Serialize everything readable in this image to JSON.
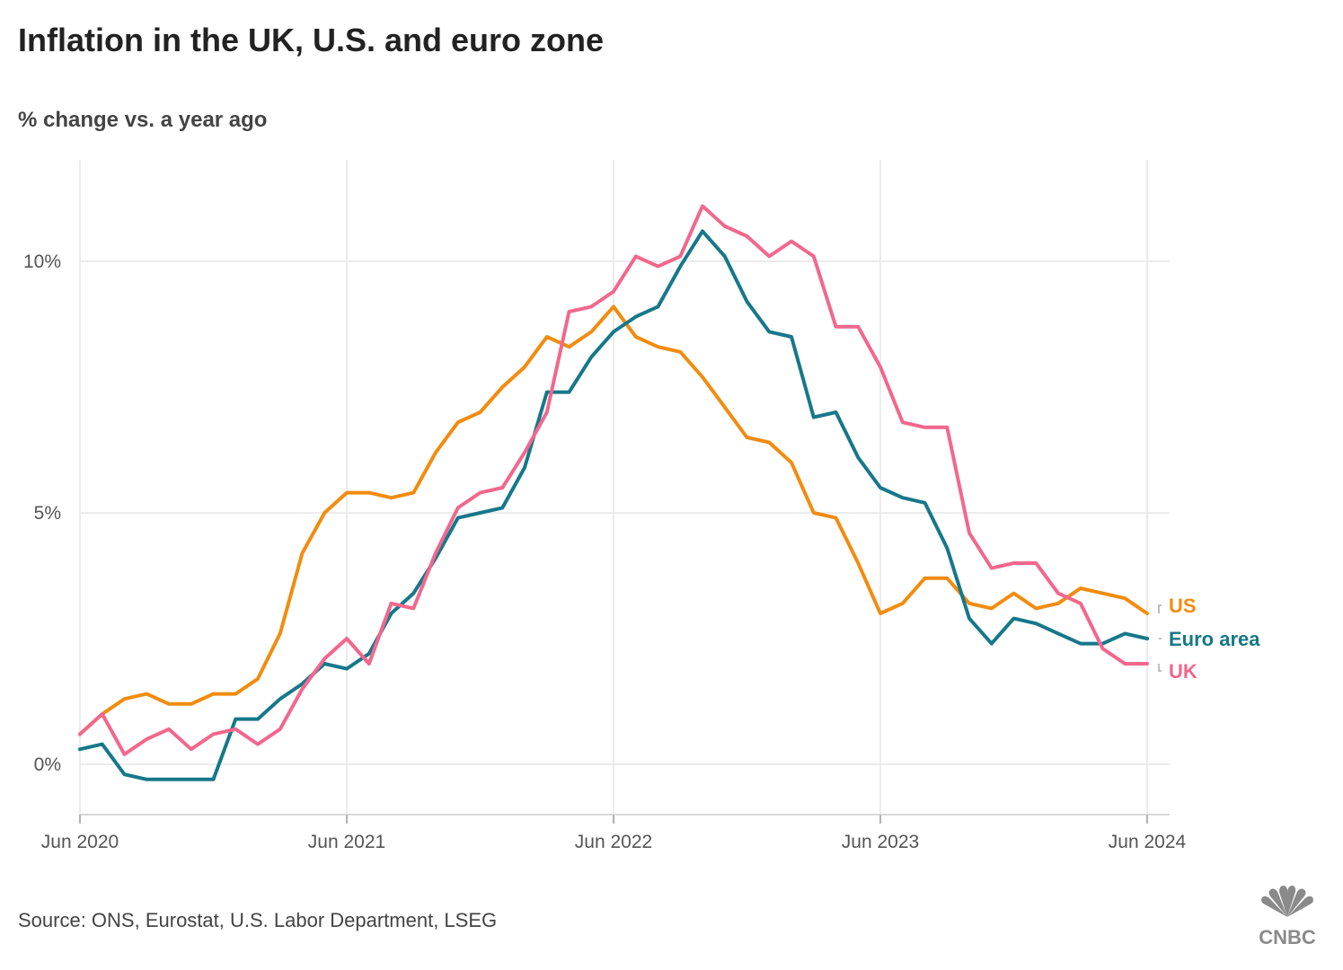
{
  "title": "Inflation in the UK, U.S. and euro zone",
  "subtitle": "% change vs. a year ago",
  "source": "Source: ONS, Eurostat, U.S. Labor Department, LSEG",
  "logo_text": "CNBC",
  "colors": {
    "US": "#f28c0f",
    "Euro area": "#16788a",
    "UK": "#f2678d",
    "grid": "#e6e6e6",
    "axis": "#cccccc"
  },
  "chart_data": {
    "type": "line",
    "title": "Inflation in the UK, U.S. and euro zone",
    "ylabel": "% change vs. a year ago",
    "x_start": "Jun 2020",
    "x_end": "Jun 2024",
    "x_tick_labels": [
      "Jun 2020",
      "Jun 2021",
      "Jun 2022",
      "Jun 2023",
      "Jun 2024"
    ],
    "x_tick_index": [
      0,
      12,
      24,
      36,
      48
    ],
    "y_ticks": [
      0,
      5,
      10
    ],
    "y_tick_labels": [
      "0%",
      "5%",
      "10%"
    ],
    "ylim": [
      -1,
      12
    ],
    "series": [
      {
        "name": "US",
        "label": "US",
        "values": [
          0.6,
          1.0,
          1.3,
          1.4,
          1.2,
          1.2,
          1.4,
          1.4,
          1.7,
          2.6,
          4.2,
          5.0,
          5.4,
          5.4,
          5.3,
          5.4,
          6.2,
          6.8,
          7.0,
          7.5,
          7.9,
          8.5,
          8.3,
          8.6,
          9.1,
          8.5,
          8.3,
          8.2,
          7.7,
          7.1,
          6.5,
          6.4,
          6.0,
          5.0,
          4.9,
          4.0,
          3.0,
          3.2,
          3.7,
          3.7,
          3.2,
          3.1,
          3.4,
          3.1,
          3.2,
          3.5,
          3.4,
          3.3,
          3.0
        ]
      },
      {
        "name": "Euro area",
        "label": "Euro area",
        "values": [
          0.3,
          0.4,
          -0.2,
          -0.3,
          -0.3,
          -0.3,
          -0.3,
          0.9,
          0.9,
          1.3,
          1.6,
          2.0,
          1.9,
          2.2,
          3.0,
          3.4,
          4.1,
          4.9,
          5.0,
          5.1,
          5.9,
          7.4,
          7.4,
          8.1,
          8.6,
          8.9,
          9.1,
          9.9,
          10.6,
          10.1,
          9.2,
          8.6,
          8.5,
          6.9,
          7.0,
          6.1,
          5.5,
          5.3,
          5.2,
          4.3,
          2.9,
          2.4,
          2.9,
          2.8,
          2.6,
          2.4,
          2.4,
          2.6,
          2.5
        ]
      },
      {
        "name": "UK",
        "label": "UK",
        "values": [
          0.6,
          1.0,
          0.2,
          0.5,
          0.7,
          0.3,
          0.6,
          0.7,
          0.4,
          0.7,
          1.5,
          2.1,
          2.5,
          2.0,
          3.2,
          3.1,
          4.2,
          5.1,
          5.4,
          5.5,
          6.2,
          7.0,
          9.0,
          9.1,
          9.4,
          10.1,
          9.9,
          10.1,
          11.1,
          10.7,
          10.5,
          10.1,
          10.4,
          10.1,
          8.7,
          8.7,
          7.9,
          6.8,
          6.7,
          6.7,
          4.6,
          3.9,
          4.0,
          4.0,
          3.4,
          3.2,
          2.3,
          2.0,
          2.0
        ]
      }
    ]
  }
}
